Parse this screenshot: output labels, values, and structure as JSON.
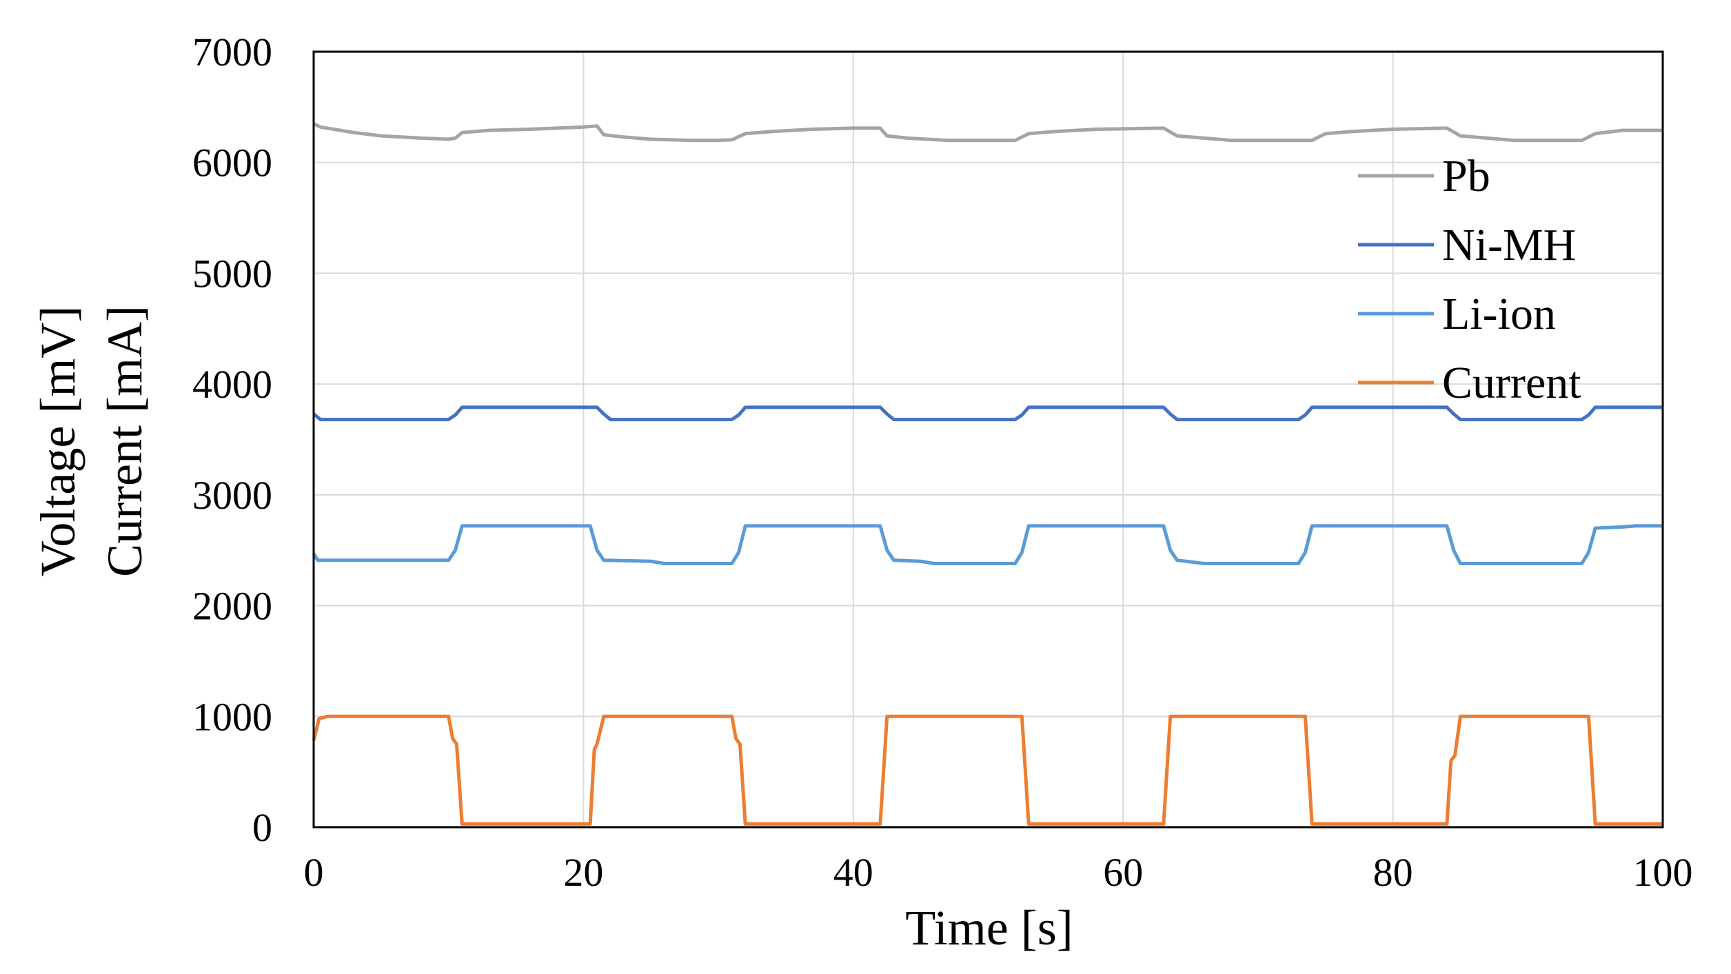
{
  "chart_data": {
    "type": "line",
    "title": "",
    "xlabel": "Time [s]",
    "ylabel_lines": [
      "Voltage [mV]",
      "Current [mA]"
    ],
    "xlim": [
      0,
      100
    ],
    "ylim": [
      0,
      7000
    ],
    "xticks": [
      0,
      20,
      40,
      60,
      80,
      100
    ],
    "yticks": [
      0,
      1000,
      2000,
      3000,
      4000,
      5000,
      6000,
      7000
    ],
    "grid": true,
    "legend_position": "top-right",
    "series": [
      {
        "name": "Pb",
        "color": "#a5a5a5",
        "points": [
          [
            0,
            6350
          ],
          [
            0.5,
            6320
          ],
          [
            3,
            6270
          ],
          [
            5,
            6240
          ],
          [
            8,
            6220
          ],
          [
            10,
            6210
          ],
          [
            10.5,
            6220
          ],
          [
            11,
            6270
          ],
          [
            13,
            6290
          ],
          [
            16,
            6300
          ],
          [
            20,
            6320
          ],
          [
            21,
            6330
          ],
          [
            21.5,
            6250
          ],
          [
            23,
            6230
          ],
          [
            25,
            6210
          ],
          [
            28,
            6200
          ],
          [
            30,
            6200
          ],
          [
            31,
            6205
          ],
          [
            32,
            6260
          ],
          [
            34,
            6280
          ],
          [
            37,
            6300
          ],
          [
            40,
            6310
          ],
          [
            42,
            6310
          ],
          [
            42.5,
            6240
          ],
          [
            44,
            6220
          ],
          [
            47,
            6200
          ],
          [
            52,
            6200
          ],
          [
            53,
            6260
          ],
          [
            55,
            6280
          ],
          [
            58,
            6300
          ],
          [
            63,
            6310
          ],
          [
            64,
            6240
          ],
          [
            66,
            6220
          ],
          [
            68,
            6200
          ],
          [
            74,
            6200
          ],
          [
            75,
            6260
          ],
          [
            77,
            6280
          ],
          [
            80,
            6300
          ],
          [
            84,
            6310
          ],
          [
            85,
            6240
          ],
          [
            87,
            6220
          ],
          [
            89,
            6200
          ],
          [
            94,
            6200
          ],
          [
            95,
            6260
          ],
          [
            97,
            6290
          ],
          [
            100,
            6290
          ]
        ]
      },
      {
        "name": "Ni-MH",
        "color": "#4472c4",
        "points": [
          [
            0,
            3730
          ],
          [
            0.5,
            3680
          ],
          [
            10,
            3680
          ],
          [
            10.5,
            3720
          ],
          [
            11,
            3790
          ],
          [
            21,
            3790
          ],
          [
            21.5,
            3730
          ],
          [
            22,
            3680
          ],
          [
            31,
            3680
          ],
          [
            31.5,
            3720
          ],
          [
            32,
            3790
          ],
          [
            42,
            3790
          ],
          [
            42.5,
            3730
          ],
          [
            43,
            3680
          ],
          [
            52,
            3680
          ],
          [
            52.5,
            3720
          ],
          [
            53,
            3790
          ],
          [
            63,
            3790
          ],
          [
            63.5,
            3730
          ],
          [
            64,
            3680
          ],
          [
            73,
            3680
          ],
          [
            73.5,
            3720
          ],
          [
            74,
            3790
          ],
          [
            84,
            3790
          ],
          [
            84.5,
            3730
          ],
          [
            85,
            3680
          ],
          [
            94,
            3680
          ],
          [
            94.5,
            3720
          ],
          [
            95,
            3790
          ],
          [
            100,
            3790
          ]
        ]
      },
      {
        "name": "Li-ion",
        "color": "#5b9bd5",
        "points": [
          [
            0,
            2470
          ],
          [
            0.3,
            2410
          ],
          [
            10,
            2410
          ],
          [
            10.5,
            2500
          ],
          [
            11,
            2720
          ],
          [
            20.5,
            2720
          ],
          [
            21,
            2500
          ],
          [
            21.5,
            2410
          ],
          [
            25,
            2400
          ],
          [
            26,
            2380
          ],
          [
            31,
            2380
          ],
          [
            31.5,
            2480
          ],
          [
            32,
            2720
          ],
          [
            42,
            2720
          ],
          [
            42.5,
            2500
          ],
          [
            43,
            2410
          ],
          [
            45,
            2400
          ],
          [
            46,
            2380
          ],
          [
            52,
            2380
          ],
          [
            52.5,
            2480
          ],
          [
            53,
            2720
          ],
          [
            63,
            2720
          ],
          [
            63.5,
            2500
          ],
          [
            64,
            2410
          ],
          [
            66,
            2380
          ],
          [
            73,
            2380
          ],
          [
            73.5,
            2480
          ],
          [
            74,
            2720
          ],
          [
            84,
            2720
          ],
          [
            84.5,
            2500
          ],
          [
            85,
            2380
          ],
          [
            94,
            2380
          ],
          [
            94.5,
            2480
          ],
          [
            95,
            2700
          ],
          [
            97,
            2710
          ],
          [
            98,
            2720
          ],
          [
            100,
            2720
          ]
        ]
      },
      {
        "name": "Current",
        "color": "#ed7d31",
        "points": [
          [
            0,
            780
          ],
          [
            0.4,
            980
          ],
          [
            1,
            1000
          ],
          [
            10,
            1000
          ],
          [
            10.3,
            800
          ],
          [
            10.6,
            750
          ],
          [
            11,
            30
          ],
          [
            20.5,
            30
          ],
          [
            20.8,
            700
          ],
          [
            21,
            750
          ],
          [
            21.5,
            1000
          ],
          [
            31,
            1000
          ],
          [
            31.3,
            800
          ],
          [
            31.6,
            750
          ],
          [
            32,
            30
          ],
          [
            42,
            30
          ],
          [
            42.5,
            1000
          ],
          [
            52.5,
            1000
          ],
          [
            53,
            30
          ],
          [
            63,
            30
          ],
          [
            63.5,
            1000
          ],
          [
            73.5,
            1000
          ],
          [
            74,
            30
          ],
          [
            84,
            30
          ],
          [
            84.3,
            600
          ],
          [
            84.6,
            650
          ],
          [
            85,
            1000
          ],
          [
            94.5,
            1000
          ],
          [
            95,
            30
          ],
          [
            100,
            30
          ]
        ]
      }
    ]
  }
}
